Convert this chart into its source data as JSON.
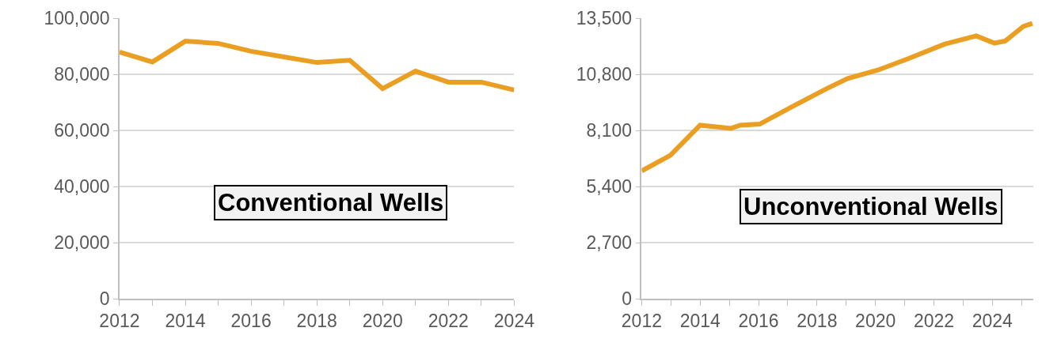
{
  "chart_data": [
    {
      "type": "line",
      "x": [
        2012,
        2013,
        2014,
        2015,
        2016,
        2017,
        2018,
        2019,
        2020,
        2021,
        2022,
        2023,
        2024
      ],
      "series": [
        {
          "color": "#eb9f22",
          "values": [
            87900,
            84400,
            91800,
            91000,
            88200,
            86200,
            84200,
            85000,
            74900,
            81100,
            77200,
            77200,
            74400
          ]
        }
      ],
      "xlim": [
        2012,
        2024
      ],
      "xticks": [
        2012,
        {
          "value": 2013,
          "label": null
        },
        2014,
        {
          "value": 2015,
          "label": null
        },
        2016,
        {
          "value": 2017,
          "label": null
        },
        2018,
        {
          "value": 2019,
          "label": null
        },
        2020,
        {
          "value": 2021,
          "label": null
        },
        2022,
        {
          "value": 2023,
          "label": null
        },
        2024
      ],
      "ylim": [
        0,
        100000
      ],
      "yticks": [
        0,
        {
          "value": 20000,
          "label": "20,000"
        },
        {
          "value": 40000,
          "label": "40,000"
        },
        {
          "value": 60000,
          "label": "60,000"
        },
        {
          "value": 80000,
          "label": "80,000"
        },
        {
          "value": 100000,
          "label": "100,000"
        }
      ],
      "grid": "y",
      "marker": "none",
      "line_style": "solid",
      "annotations": [
        "Conventional Wells"
      ]
    },
    {
      "type": "line",
      "x": [
        2012,
        2012.98,
        2014.0,
        2015.06,
        2015.37,
        2016.04,
        2017.23,
        2018.32,
        2019.05,
        2020.08,
        2021.12,
        2022.36,
        2023.45,
        2024.07,
        2024.44,
        2025.06,
        2025.37
      ],
      "series": [
        {
          "color": "#eb9f22",
          "values": [
            6150,
            6900,
            8350,
            8200,
            8350,
            8400,
            9300,
            10100,
            10600,
            11000,
            11550,
            12250,
            12650,
            12300,
            12400,
            13100,
            13250
          ]
        }
      ],
      "xlim": [
        2012,
        2025.4
      ],
      "xticks": [
        2012,
        {
          "value": 2013,
          "label": null
        },
        2014,
        {
          "value": 2015,
          "label": null
        },
        2016,
        {
          "value": 2017,
          "label": null
        },
        2018,
        {
          "value": 2019,
          "label": null
        },
        2020,
        {
          "value": 2021,
          "label": null
        },
        2022,
        {
          "value": 2023,
          "label": null
        },
        2024,
        {
          "value": 2025,
          "label": null
        }
      ],
      "ylim": [
        0,
        13500
      ],
      "yticks": [
        0,
        {
          "value": 2700,
          "label": "2,700"
        },
        {
          "value": 5400,
          "label": "5,400"
        },
        {
          "value": 8100,
          "label": "8,100"
        },
        {
          "value": 10800,
          "label": "10,800"
        },
        {
          "value": 13500,
          "label": "13,500"
        }
      ],
      "grid": "y",
      "marker": "none",
      "line_style": "solid",
      "annotations": [
        "Unconventional Wells"
      ]
    }
  ]
}
